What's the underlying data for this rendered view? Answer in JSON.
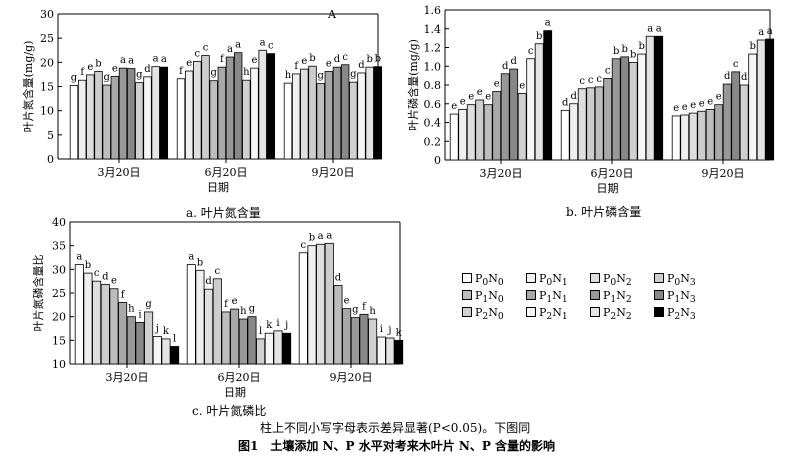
{
  "palette": [
    "#ffffff",
    "#efefef",
    "#dedede",
    "#cdcdcd",
    "#bdbdbd",
    "#a8a8a8",
    "#989898",
    "#888888",
    "#d0d0d0",
    "#f6f6f6",
    "#e4e4e4",
    "#000000"
  ],
  "legend": [
    {
      "label": "P0N0",
      "sub": [
        "0",
        "0"
      ]
    },
    {
      "label": "P0N1",
      "sub": [
        "0",
        "1"
      ]
    },
    {
      "label": "P0N2",
      "sub": [
        "0",
        "2"
      ]
    },
    {
      "label": "P0N3",
      "sub": [
        "0",
        "3"
      ]
    },
    {
      "label": "P1N0",
      "sub": [
        "1",
        "0"
      ]
    },
    {
      "label": "P1N1",
      "sub": [
        "1",
        "1"
      ]
    },
    {
      "label": "P1N2",
      "sub": [
        "1",
        "2"
      ]
    },
    {
      "label": "P1N3",
      "sub": [
        "1",
        "3"
      ]
    },
    {
      "label": "P2N0",
      "sub": [
        "2",
        "0"
      ]
    },
    {
      "label": "P2N1",
      "sub": [
        "2",
        "1"
      ]
    },
    {
      "label": "P2N2",
      "sub": [
        "2",
        "2"
      ]
    },
    {
      "label": "P2N3",
      "sub": [
        "2",
        "3"
      ]
    }
  ],
  "captions": {
    "a": "a. 叶片氮含量",
    "b": "b. 叶片磷含量",
    "c": "c. 叶片氮磷比",
    "note": "柱上不同小写字母表示差异显著(P<0.05)。下图同",
    "figure": "图1　土壤添加 N、P 水平对考来木叶片 N、P 含量的影响"
  },
  "chart_data": [
    {
      "type": "bar",
      "corner_label": "A",
      "xlabel": "日期",
      "ylabel": "叶片氮含量(mg/g)",
      "ylim": [
        0,
        30
      ],
      "yticks": [
        0,
        5,
        10,
        15,
        20,
        25,
        30
      ],
      "categories": [
        "3月20日",
        "6月20日",
        "9月20日"
      ],
      "values": [
        [
          15.2,
          16.3,
          17.4,
          18.1,
          15.3,
          17.1,
          18.8,
          18.7,
          15.8,
          17.0,
          19.1,
          19.0
        ],
        [
          16.6,
          18.2,
          20.2,
          21.4,
          16.2,
          19.0,
          21.1,
          22.0,
          16.3,
          18.8,
          22.5,
          21.8
        ],
        [
          15.7,
          17.6,
          18.6,
          19.2,
          15.6,
          18.1,
          19.0,
          19.5,
          15.9,
          17.8,
          19.0,
          19.1
        ]
      ],
      "labels": [
        [
          "g",
          "f",
          "e",
          "b",
          "g",
          "e",
          "a",
          "a",
          "g",
          "d",
          "a",
          "a"
        ],
        [
          "f",
          "e",
          "c",
          "c",
          "g",
          "f",
          "a",
          "a",
          "h",
          "e",
          "a",
          "c"
        ],
        [
          "h",
          "f",
          "e",
          "b",
          "g",
          "e",
          "d",
          "c",
          "g",
          "d",
          "b",
          "b"
        ]
      ]
    },
    {
      "type": "bar",
      "xlabel": "日期",
      "ylabel": "叶片磷含量(mg/g)",
      "ylim": [
        0,
        1.6
      ],
      "yticks": [
        0,
        0.2,
        0.4,
        0.6,
        0.8,
        1.0,
        1.2,
        1.4,
        1.6
      ],
      "categories": [
        "3月20日",
        "6月20日",
        "9月20日"
      ],
      "values": [
        [
          0.49,
          0.54,
          0.59,
          0.64,
          0.59,
          0.73,
          0.92,
          0.97,
          0.71,
          1.08,
          1.24,
          1.38
        ],
        [
          0.53,
          0.6,
          0.76,
          0.77,
          0.78,
          0.87,
          1.08,
          1.1,
          1.04,
          1.13,
          1.32,
          1.32
        ],
        [
          0.47,
          0.48,
          0.5,
          0.52,
          0.54,
          0.59,
          0.81,
          0.94,
          0.8,
          1.13,
          1.28,
          1.29
        ]
      ],
      "labels": [
        [
          "e",
          "e",
          "e",
          "e",
          "e",
          "e",
          "d",
          "d",
          "e",
          "c",
          "b",
          "a"
        ],
        [
          "d",
          "d",
          "c",
          "c",
          "c",
          "c",
          "b",
          "b",
          "b",
          "b",
          "a",
          "a"
        ],
        [
          "e",
          "e",
          "e",
          "e",
          "e",
          "e",
          "d",
          "c",
          "d",
          "b",
          "a",
          "a"
        ]
      ]
    },
    {
      "type": "bar",
      "xlabel": "日期",
      "ylabel": "叶片氮磷含量比",
      "ylim": [
        10,
        40
      ],
      "yticks": [
        10,
        15,
        20,
        25,
        30,
        35,
        40
      ],
      "categories": [
        "3月20日",
        "6月20日",
        "9月20日"
      ],
      "values": [
        [
          31.0,
          29.2,
          27.5,
          26.8,
          25.9,
          23.0,
          20.0,
          18.8,
          21.0,
          15.8,
          15.3,
          13.7
        ],
        [
          31.0,
          29.8,
          25.8,
          28.0,
          21.0,
          21.6,
          19.5,
          20.0,
          15.3,
          16.5,
          17.0,
          16.5
        ],
        [
          33.5,
          35.0,
          35.3,
          35.5,
          26.6,
          21.7,
          19.8,
          20.5,
          19.5,
          15.7,
          15.5,
          15.0
        ]
      ],
      "labels": [
        [
          "a",
          "b",
          "c",
          "d",
          "e",
          "f",
          "h",
          "i",
          "g",
          "j",
          "k",
          "l"
        ],
        [
          "a",
          "b",
          "d",
          "c",
          "f",
          "e",
          "h",
          "g",
          "l",
          "k",
          "i",
          "j"
        ],
        [
          "c",
          "b",
          "a",
          "a",
          "d",
          "e",
          "g",
          "f",
          "h",
          "i",
          "j",
          "k"
        ]
      ]
    }
  ]
}
